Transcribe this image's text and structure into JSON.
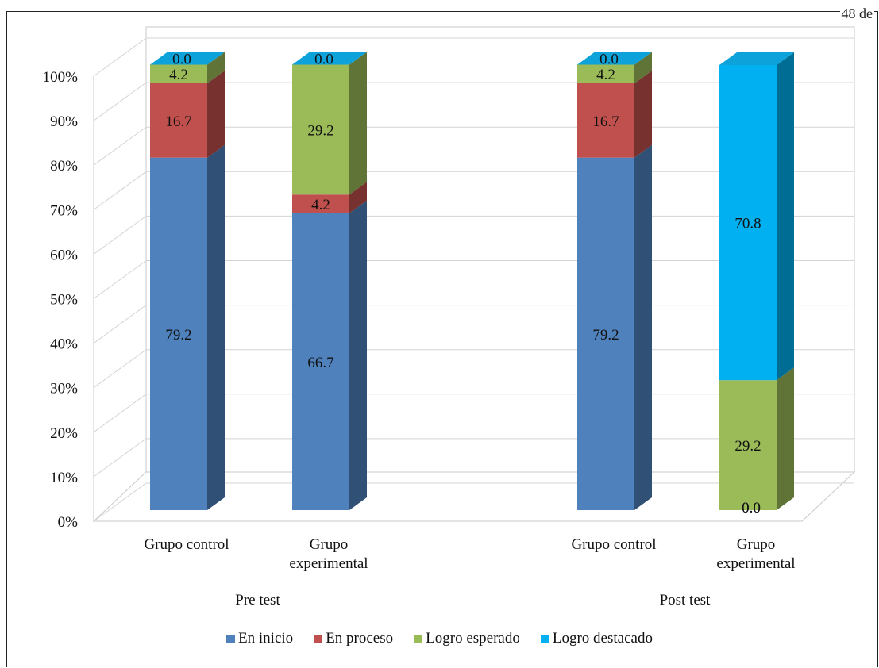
{
  "corner_text": "48 de",
  "chart_data": {
    "type": "bar",
    "stacked": true,
    "three_d": true,
    "y_axis": {
      "min": 0,
      "max": 100,
      "step": 10,
      "tick_labels": [
        "0%",
        "10%",
        "20%",
        "30%",
        "40%",
        "50%",
        "60%",
        "70%",
        "80%",
        "90%",
        "100%"
      ]
    },
    "groups": [
      {
        "label": "Pre test",
        "categories": [
          "Grupo control",
          "Grupo experimental"
        ]
      },
      {
        "label": "Post test",
        "categories": [
          "Grupo control",
          "Grupo experimental"
        ]
      }
    ],
    "category_labels": [
      [
        "Grupo control"
      ],
      [
        "Grupo",
        "experimental"
      ],
      [
        "Grupo control"
      ],
      [
        "Grupo",
        "experimental"
      ]
    ],
    "series": [
      {
        "name": "En inicio",
        "color": "#4f81bd",
        "values": [
          79.2,
          66.7,
          79.2,
          0.0
        ]
      },
      {
        "name": "En proceso",
        "color": "#c0504d",
        "values": [
          16.7,
          4.2,
          16.7,
          0.0
        ]
      },
      {
        "name": "Logro esperado",
        "color": "#9bbb59",
        "values": [
          4.2,
          29.2,
          4.2,
          29.2
        ]
      },
      {
        "name": "Logro destacado",
        "color": "#00b0f0",
        "values": [
          0.0,
          0.0,
          0.0,
          70.8
        ]
      }
    ],
    "data_labels": [
      [
        "79.2",
        "16.7",
        "4.2",
        "0.0"
      ],
      [
        "66.7",
        "4.2",
        "29.2",
        "0.0"
      ],
      [
        "79.2",
        "16.7",
        "4.2",
        "0.0"
      ],
      [
        "0.0",
        "0.0",
        "29.2",
        "70.8"
      ]
    ],
    "legend_position": "bottom",
    "grid": true
  }
}
